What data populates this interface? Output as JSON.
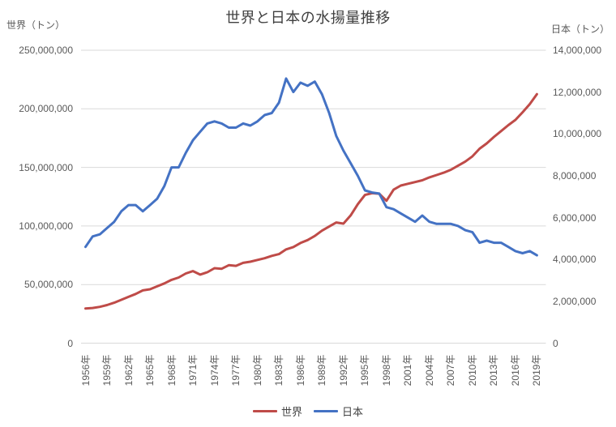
{
  "chart_data": {
    "type": "line",
    "title": "世界と日本の水揚量推移",
    "grid": "horizontal",
    "legend_position": "bottom",
    "left_axis": {
      "label": "世界（トン）",
      "min": 0,
      "max": 250000000,
      "tick_interval": 50000000,
      "tick_labels": [
        "0",
        "50,000,000",
        "100,000,000",
        "150,000,000",
        "200,000,000",
        "250,000,000"
      ]
    },
    "right_axis": {
      "label": "日本（トン）",
      "min": 0,
      "max": 14000000,
      "tick_interval": 2000000,
      "tick_labels": [
        "0",
        "2,000,000",
        "4,000,000",
        "6,000,000",
        "8,000,000",
        "10,000,000",
        "12,000,000",
        "14,000,000"
      ]
    },
    "x_axis": {
      "tick_labels": [
        "1956年",
        "1959年",
        "1962年",
        "1965年",
        "1968年",
        "1971年",
        "1974年",
        "1977年",
        "1980年",
        "1983年",
        "1986年",
        "1989年",
        "1992年",
        "1995年",
        "1998年",
        "2001年",
        "2004年",
        "2007年",
        "2010年",
        "2013年",
        "2016年",
        "2019年"
      ],
      "tick_step_years": 3
    },
    "years": [
      1956,
      1957,
      1958,
      1959,
      1960,
      1961,
      1962,
      1963,
      1964,
      1965,
      1966,
      1967,
      1968,
      1969,
      1970,
      1971,
      1972,
      1973,
      1974,
      1975,
      1976,
      1977,
      1978,
      1979,
      1980,
      1981,
      1982,
      1983,
      1984,
      1985,
      1986,
      1987,
      1988,
      1989,
      1990,
      1991,
      1992,
      1993,
      1994,
      1995,
      1996,
      1997,
      1998,
      1999,
      2000,
      2001,
      2002,
      2003,
      2004,
      2005,
      2006,
      2007,
      2008,
      2009,
      2010,
      2011,
      2012,
      2013,
      2014,
      2015,
      2016,
      2017,
      2018,
      2019
    ],
    "series": [
      {
        "name": "世界",
        "axis": "left",
        "color": "#bf4b48",
        "values": [
          29500000,
          30000000,
          31000000,
          32500000,
          34500000,
          37000000,
          39500000,
          42000000,
          45000000,
          46000000,
          48500000,
          51000000,
          54000000,
          56000000,
          59500000,
          61500000,
          58500000,
          60500000,
          64000000,
          63500000,
          66500000,
          66000000,
          68500000,
          69500000,
          71000000,
          72500000,
          74500000,
          76000000,
          80000000,
          82000000,
          85500000,
          88000000,
          91500000,
          96000000,
          99500000,
          103000000,
          102000000,
          109000000,
          118500000,
          126500000,
          128000000,
          127500000,
          121500000,
          131000000,
          134500000,
          136000000,
          137500000,
          139000000,
          141500000,
          143500000,
          145500000,
          148000000,
          151500000,
          155000000,
          159500000,
          166000000,
          170500000,
          176000000,
          181000000,
          186000000,
          190500000,
          197000000,
          204000000,
          212500000
        ]
      },
      {
        "name": "日本",
        "axis": "right",
        "color": "#4472c4",
        "values": [
          4600000,
          5100000,
          5200000,
          5500000,
          5800000,
          6300000,
          6600000,
          6600000,
          6300000,
          6600000,
          6900000,
          7500000,
          8400000,
          8400000,
          9100000,
          9700000,
          10100000,
          10500000,
          10600000,
          10500000,
          10300000,
          10300000,
          10500000,
          10400000,
          10600000,
          10900000,
          11000000,
          11500000,
          12650000,
          12000000,
          12450000,
          12300000,
          12500000,
          11900000,
          11000000,
          9900000,
          9200000,
          8600000,
          8000000,
          7300000,
          7200000,
          7150000,
          6500000,
          6400000,
          6200000,
          6000000,
          5800000,
          6100000,
          5800000,
          5700000,
          5700000,
          5700000,
          5600000,
          5400000,
          5300000,
          4800000,
          4900000,
          4800000,
          4800000,
          4600000,
          4400000,
          4300000,
          4400000,
          4200000
        ]
      }
    ],
    "gridline_color": "#d9d9d9"
  }
}
